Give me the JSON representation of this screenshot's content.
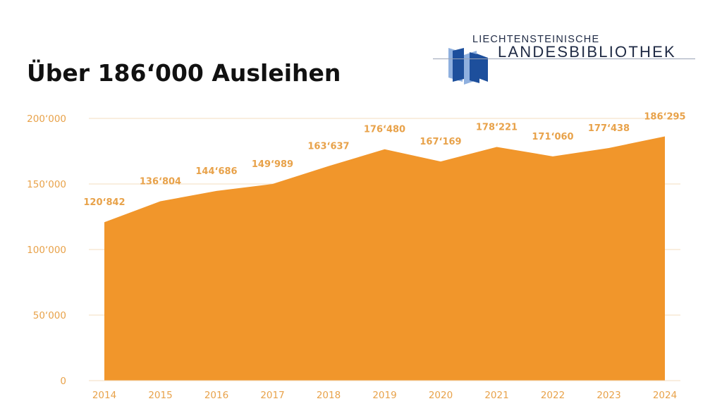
{
  "title": "Über 186‘000 Ausleihen",
  "logo": {
    "line1": "LIECHTENSTEINISCHE",
    "line2": "LANDESBIBLIOTHEK"
  },
  "colors": {
    "area": "#f1962b",
    "label": "#e8a24a",
    "grid": "#f3dcbf",
    "logo_dark": "#1d4f9c",
    "logo_light": "#8fb0df"
  },
  "chart_data": {
    "type": "area",
    "title": "Über 186‘000 Ausleihen",
    "x": [
      "2014",
      "2015",
      "2016",
      "2017",
      "2018",
      "2019",
      "2020",
      "2021",
      "2022",
      "2023",
      "2024"
    ],
    "values": [
      120842,
      136804,
      144686,
      149989,
      163637,
      176480,
      167169,
      178221,
      171060,
      177438,
      186295
    ],
    "value_labels": [
      "120‘842",
      "136‘804",
      "144‘686",
      "149‘989",
      "163‘637",
      "176‘480",
      "167‘169",
      "178‘221",
      "171‘060",
      "177‘438",
      "186‘295"
    ],
    "yticks": [
      0,
      50000,
      100000,
      150000,
      200000
    ],
    "ytick_labels": [
      "0",
      "50‘000",
      "100‘000",
      "150‘000",
      "200‘000"
    ],
    "ylim": [
      0,
      200000
    ],
    "grid": true,
    "legend": "none"
  }
}
